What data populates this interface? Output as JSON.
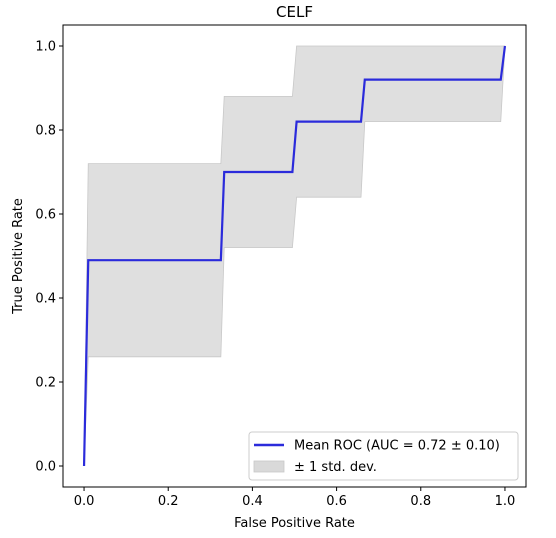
{
  "chart_data": {
    "type": "line",
    "title": "CELF",
    "xlabel": "False Positive Rate",
    "ylabel": "True Positive Rate",
    "xlim": [
      -0.05,
      1.05
    ],
    "ylim": [
      -0.05,
      1.05
    ],
    "xticks": [
      0.0,
      0.2,
      0.4,
      0.6,
      0.8,
      1.0
    ],
    "xtick_labels": [
      "0.0",
      "0.2",
      "0.4",
      "0.6",
      "0.8",
      "1.0"
    ],
    "yticks": [
      0.0,
      0.2,
      0.4,
      0.6,
      0.8,
      1.0
    ],
    "ytick_labels": [
      "0.0",
      "0.2",
      "0.4",
      "0.6",
      "0.8",
      "1.0"
    ],
    "grid": false,
    "legend_position": "lower-right",
    "series": [
      {
        "name": "Mean ROC (AUC = 0.72 ± 0.10)",
        "color": "#2b2bdb",
        "x": [
          0.0,
          0.01,
          0.325,
          0.333,
          0.495,
          0.505,
          0.658,
          0.667,
          0.99,
          1.0
        ],
        "y": [
          0.0,
          0.49,
          0.49,
          0.7,
          0.7,
          0.82,
          0.82,
          0.92,
          0.92,
          1.0
        ]
      }
    ],
    "band": {
      "name": "± 1 std. dev.",
      "color": "#d9d9d9",
      "x": [
        0.0,
        0.01,
        0.325,
        0.333,
        0.495,
        0.505,
        0.658,
        0.667,
        0.99,
        1.0
      ],
      "upper": [
        0.0,
        0.72,
        0.72,
        0.88,
        0.88,
        1.0,
        1.0,
        1.0,
        1.0,
        1.0
      ],
      "lower": [
        0.0,
        0.26,
        0.26,
        0.52,
        0.52,
        0.64,
        0.64,
        0.82,
        0.82,
        1.0
      ]
    }
  }
}
